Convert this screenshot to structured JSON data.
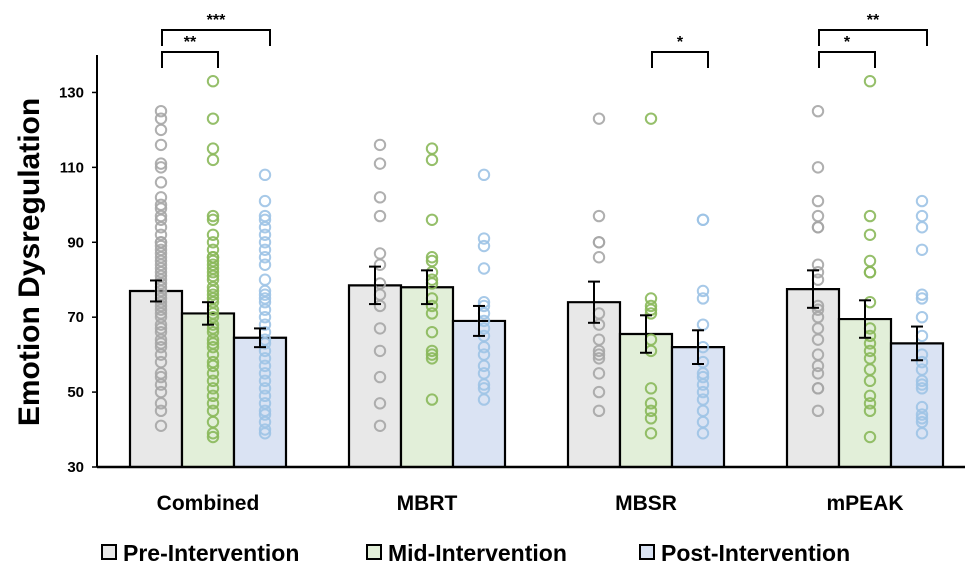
{
  "chart_data": {
    "type": "bar",
    "ylabel": "Emotion Dysregulation",
    "xlabel": "",
    "ylim": [
      30,
      140
    ],
    "yticks": [
      30,
      50,
      70,
      90,
      110,
      130
    ],
    "categories": [
      "Combined",
      "MBRT",
      "MBSR",
      "mPEAK"
    ],
    "series": [
      {
        "name": "Pre-Intervention",
        "color": "#e8e8e8",
        "point_color": "#a6a6a6",
        "values": [
          77,
          78.5,
          74,
          77.5
        ],
        "error": [
          2.8,
          5,
          5.5,
          5
        ],
        "points": [
          [
            41,
            45,
            47,
            50,
            52,
            54,
            55,
            58,
            60,
            62,
            63,
            64,
            66,
            67,
            68,
            70,
            71,
            72,
            73,
            74,
            75,
            76,
            77,
            78,
            79,
            80,
            81,
            82,
            83,
            84,
            85,
            86,
            87,
            88,
            89,
            90,
            90,
            92,
            94,
            96,
            97,
            99,
            100,
            102,
            106,
            110,
            111,
            116,
            120,
            123,
            125
          ],
          [
            41,
            47,
            54,
            61,
            67,
            73,
            76,
            79,
            84,
            87,
            97,
            102,
            111,
            116
          ],
          [
            45,
            50,
            55,
            59,
            60,
            61,
            64,
            68,
            71,
            86,
            90,
            90,
            97,
            123
          ],
          [
            45,
            51,
            51,
            55,
            57,
            60,
            64,
            67,
            70,
            72,
            73,
            80,
            82,
            84,
            94,
            94,
            97,
            101,
            110,
            125
          ]
        ]
      },
      {
        "name": "Mid-Intervention",
        "color": "#e2efd9",
        "point_color": "#8ab85a",
        "values": [
          71,
          78,
          65.5,
          69.5
        ],
        "error": [
          3,
          4.5,
          5,
          5
        ],
        "points": [
          [
            38,
            39,
            42,
            45,
            47,
            49,
            51,
            53,
            55,
            57,
            58,
            60,
            62,
            63,
            64,
            66,
            67,
            68,
            70,
            71,
            72,
            74,
            75,
            76,
            77,
            78,
            80,
            81,
            82,
            83,
            84,
            85,
            86,
            86,
            88,
            90,
            92,
            96,
            97,
            112,
            115,
            123,
            133
          ],
          [
            48,
            59,
            60,
            61,
            66,
            71,
            73,
            75,
            79,
            80,
            82,
            85,
            86,
            96,
            112,
            115
          ],
          [
            39,
            43,
            45,
            47,
            51,
            61,
            64,
            71,
            72,
            73,
            75,
            123
          ],
          [
            38,
            45,
            47,
            49,
            53,
            56,
            59,
            61,
            63,
            65,
            67,
            74,
            82,
            82,
            85,
            92,
            97,
            133
          ]
        ]
      },
      {
        "name": "Post-Intervention",
        "color": "#dae3f3",
        "point_color": "#9dc3e6",
        "values": [
          64.5,
          69,
          62,
          63
        ],
        "error": [
          2.5,
          4,
          4.5,
          4.5
        ],
        "points": [
          [
            39,
            40,
            42,
            44,
            45,
            47,
            49,
            51,
            53,
            55,
            57,
            59,
            61,
            63,
            64,
            66,
            68,
            70,
            72,
            74,
            75,
            76,
            77,
            80,
            84,
            86,
            88,
            90,
            92,
            94,
            96,
            97,
            101,
            108
          ],
          [
            48,
            51,
            52,
            55,
            57,
            60,
            62,
            65,
            67,
            69,
            71,
            73,
            74,
            83,
            89,
            91,
            108
          ],
          [
            39,
            42,
            45,
            48,
            50,
            52,
            54,
            55,
            58,
            62,
            68,
            75,
            77,
            96,
            96
          ],
          [
            39,
            42,
            43,
            44,
            46,
            51,
            52,
            53,
            56,
            58,
            60,
            65,
            70,
            75,
            76,
            88,
            94,
            97,
            101
          ]
        ]
      }
    ],
    "significance": [
      {
        "group": 0,
        "from": 0,
        "to": 1,
        "label": "**",
        "level": 1
      },
      {
        "group": 0,
        "from": 0,
        "to": 2,
        "label": "***",
        "level": 2
      },
      {
        "group": 2,
        "from": 1,
        "to": 2,
        "label": "*",
        "level": 1
      },
      {
        "group": 3,
        "from": 0,
        "to": 1,
        "label": "*",
        "level": 1
      },
      {
        "group": 3,
        "from": 0,
        "to": 2,
        "label": "**",
        "level": 2
      }
    ],
    "legend_position": "bottom"
  }
}
